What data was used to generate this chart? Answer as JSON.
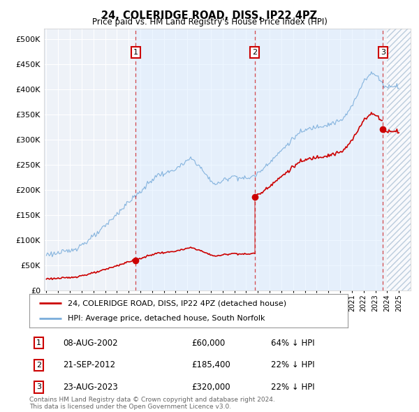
{
  "title": "24, COLERIDGE ROAD, DISS, IP22 4PZ",
  "subtitle": "Price paid vs. HM Land Registry's House Price Index (HPI)",
  "hpi_label": "HPI: Average price, detached house, South Norfolk",
  "property_label": "24, COLERIDGE ROAD, DISS, IP22 4PZ (detached house)",
  "background_color": "#ffffff",
  "plot_bg_color": "#eef2f8",
  "hpi_color": "#7aaddb",
  "price_color": "#cc0000",
  "ylim": [
    0,
    520000
  ],
  "yticks": [
    0,
    50000,
    100000,
    150000,
    200000,
    250000,
    300000,
    350000,
    400000,
    450000,
    500000
  ],
  "sales": [
    {
      "date_str": "08-AUG-2002",
      "date_num": 2002.6,
      "price": 60000,
      "label": "1",
      "hpi_pct": "64% ↓ HPI"
    },
    {
      "date_str": "21-SEP-2012",
      "date_num": 2012.72,
      "price": 185400,
      "label": "2",
      "hpi_pct": "22% ↓ HPI"
    },
    {
      "date_str": "23-AUG-2023",
      "date_num": 2023.64,
      "price": 320000,
      "label": "3",
      "hpi_pct": "22% ↓ HPI"
    }
  ],
  "hpi_keypoints": [
    [
      1995.0,
      72000
    ],
    [
      1995.5,
      73000
    ],
    [
      1996.0,
      74000
    ],
    [
      1996.5,
      76000
    ],
    [
      1997.0,
      79000
    ],
    [
      1997.5,
      84000
    ],
    [
      1998.0,
      91000
    ],
    [
      1998.5,
      98000
    ],
    [
      1999.0,
      107000
    ],
    [
      1999.5,
      116000
    ],
    [
      2000.0,
      128000
    ],
    [
      2000.5,
      140000
    ],
    [
      2001.0,
      152000
    ],
    [
      2001.5,
      164000
    ],
    [
      2002.0,
      176000
    ],
    [
      2002.5,
      186000
    ],
    [
      2003.0,
      196000
    ],
    [
      2003.5,
      208000
    ],
    [
      2004.0,
      220000
    ],
    [
      2004.5,
      230000
    ],
    [
      2005.0,
      232000
    ],
    [
      2005.5,
      235000
    ],
    [
      2006.0,
      242000
    ],
    [
      2006.5,
      248000
    ],
    [
      2007.0,
      258000
    ],
    [
      2007.3,
      262000
    ],
    [
      2007.6,
      258000
    ],
    [
      2008.0,
      248000
    ],
    [
      2008.5,
      232000
    ],
    [
      2009.0,
      218000
    ],
    [
      2009.5,
      210000
    ],
    [
      2010.0,
      218000
    ],
    [
      2010.5,
      224000
    ],
    [
      2011.0,
      228000
    ],
    [
      2011.5,
      224000
    ],
    [
      2012.0,
      222000
    ],
    [
      2012.5,
      226000
    ],
    [
      2013.0,
      232000
    ],
    [
      2013.5,
      244000
    ],
    [
      2014.0,
      256000
    ],
    [
      2014.5,
      266000
    ],
    [
      2015.0,
      278000
    ],
    [
      2015.5,
      290000
    ],
    [
      2016.0,
      302000
    ],
    [
      2016.5,
      312000
    ],
    [
      2017.0,
      318000
    ],
    [
      2017.5,
      322000
    ],
    [
      2018.0,
      326000
    ],
    [
      2018.5,
      328000
    ],
    [
      2019.0,
      330000
    ],
    [
      2019.5,
      334000
    ],
    [
      2020.0,
      336000
    ],
    [
      2020.5,
      348000
    ],
    [
      2021.0,
      366000
    ],
    [
      2021.5,
      390000
    ],
    [
      2022.0,
      418000
    ],
    [
      2022.5,
      428000
    ],
    [
      2022.8,
      432000
    ],
    [
      2023.0,
      428000
    ],
    [
      2023.3,
      422000
    ],
    [
      2023.5,
      416000
    ],
    [
      2023.7,
      408000
    ],
    [
      2024.0,
      404000
    ],
    [
      2024.3,
      406000
    ],
    [
      2024.6,
      408000
    ],
    [
      2025.0,
      405000
    ]
  ],
  "copyright_text": "Contains HM Land Registry data © Crown copyright and database right 2024.\nThis data is licensed under the Open Government Licence v3.0."
}
